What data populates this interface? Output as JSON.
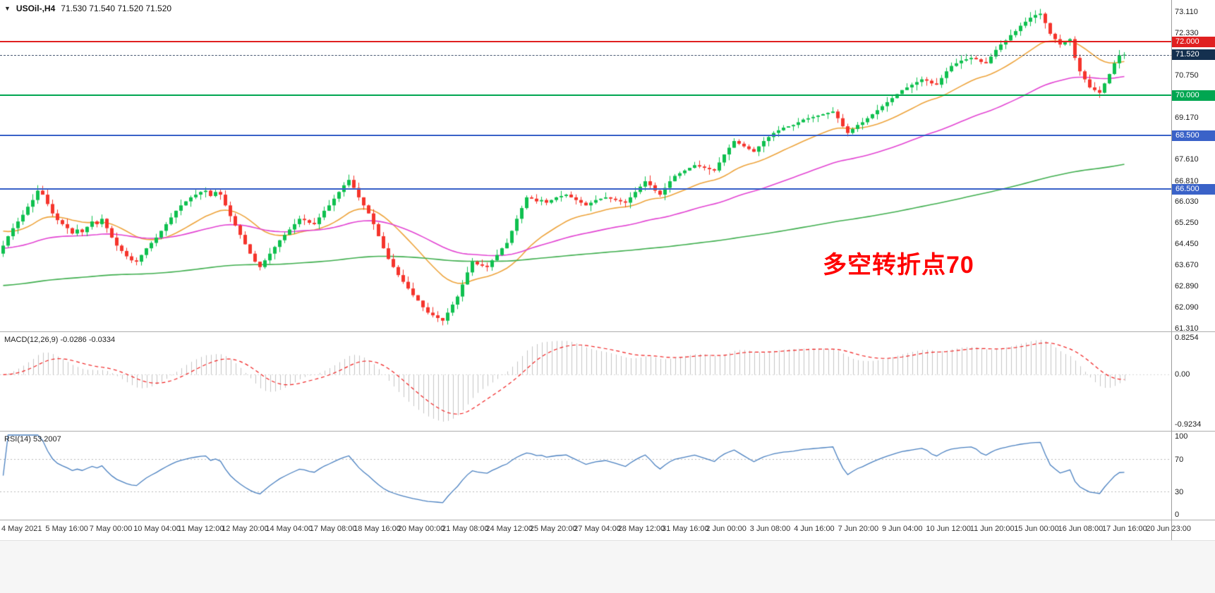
{
  "header": {
    "symbol": "USOil-,H4",
    "ohlc": "71.530 71.540 71.520 71.520"
  },
  "chart_data": [
    {
      "id": "price",
      "type": "candlestick",
      "title": "USOil-,H4",
      "symbol": "USOil",
      "timeframe": "H4",
      "up_color": "#0fc04f",
      "down_color": "#f5342c",
      "ylim": [
        61.2,
        73.56
      ],
      "y_ticks": [
        "73.110",
        "72.330",
        "70.750",
        "69.170",
        "67.610",
        "66.810",
        "66.030",
        "65.250",
        "64.450",
        "63.670",
        "62.890",
        "62.090",
        "61.310"
      ],
      "y_tick_values": [
        73.11,
        72.33,
        70.75,
        69.17,
        67.61,
        66.81,
        66.03,
        65.25,
        64.45,
        63.67,
        62.89,
        62.09,
        61.31
      ],
      "x_labels": [
        "4 May 2021",
        "5 May 16:00",
        "7 May 00:00",
        "10 May 04:00",
        "11 May 12:00",
        "12 May 20:00",
        "14 May 04:00",
        "17 May 08:00",
        "18 May 16:00",
        "20 May 00:00",
        "21 May 08:00",
        "24 May 12:00",
        "25 May 20:00",
        "27 May 04:00",
        "28 May 12:00",
        "31 May 16:00",
        "2 Jun 00:00",
        "3 Jun 08:00",
        "4 Jun 16:00",
        "7 Jun 20:00",
        "9 Jun 04:00",
        "10 Jun 12:00",
        "11 Jun 20:00",
        "15 Jun 00:00",
        "16 Jun 08:00",
        "17 Jun 16:00",
        "20 Jun 23:00"
      ],
      "first_open": 64.1,
      "closes": [
        64.4,
        64.75,
        65.05,
        65.3,
        65.55,
        65.85,
        66.1,
        66.45,
        66.3,
        65.95,
        65.6,
        65.35,
        65.2,
        65.05,
        64.85,
        65.0,
        64.9,
        65.1,
        65.3,
        65.2,
        65.4,
        65.05,
        64.7,
        64.4,
        64.2,
        64.0,
        63.85,
        63.8,
        64.05,
        64.3,
        64.5,
        64.7,
        64.95,
        65.2,
        65.45,
        65.7,
        65.9,
        66.05,
        66.2,
        66.3,
        66.4,
        66.45,
        66.25,
        66.4,
        66.3,
        65.9,
        65.5,
        65.15,
        64.8,
        64.45,
        64.1,
        63.8,
        63.6,
        63.85,
        64.1,
        64.35,
        64.6,
        64.8,
        65.0,
        65.2,
        65.4,
        65.35,
        65.25,
        65.2,
        65.45,
        65.7,
        65.9,
        66.15,
        66.4,
        66.65,
        66.85,
        66.55,
        66.2,
        65.9,
        65.6,
        65.2,
        64.75,
        64.3,
        63.9,
        63.6,
        63.3,
        63.05,
        62.8,
        62.55,
        62.35,
        62.1,
        61.9,
        61.8,
        61.7,
        61.6,
        61.9,
        62.2,
        62.5,
        62.95,
        63.4,
        63.8,
        63.7,
        63.65,
        63.6,
        63.85,
        64.05,
        64.3,
        64.5,
        64.95,
        65.4,
        65.8,
        66.2,
        66.15,
        66.05,
        66.1,
        66.0,
        66.1,
        66.2,
        66.25,
        66.3,
        66.2,
        66.1,
        66.0,
        65.9,
        66.0,
        66.1,
        66.15,
        66.2,
        66.15,
        66.1,
        66.05,
        66.0,
        66.2,
        66.4,
        66.6,
        66.8,
        66.65,
        66.45,
        66.3,
        66.55,
        66.8,
        67.0,
        67.1,
        67.2,
        67.3,
        67.4,
        67.35,
        67.3,
        67.25,
        67.2,
        67.5,
        67.8,
        68.05,
        68.3,
        68.2,
        68.1,
        68.0,
        67.9,
        68.1,
        68.3,
        68.45,
        68.6,
        68.7,
        68.8,
        68.85,
        68.9,
        69.0,
        69.1,
        69.15,
        69.2,
        69.25,
        69.3,
        69.35,
        69.4,
        69.15,
        68.85,
        68.6,
        68.75,
        68.9,
        69.0,
        69.15,
        69.3,
        69.45,
        69.6,
        69.75,
        69.9,
        70.05,
        70.2,
        70.3,
        70.4,
        70.5,
        70.6,
        70.55,
        70.45,
        70.4,
        70.65,
        70.9,
        71.1,
        71.2,
        71.3,
        71.35,
        71.4,
        71.35,
        71.25,
        71.2,
        71.45,
        71.7,
        71.9,
        72.05,
        72.25,
        72.4,
        72.6,
        72.75,
        72.9,
        73.0,
        73.05,
        72.7,
        72.3,
        72.1,
        71.9,
        72.0,
        72.1,
        71.4,
        70.9,
        70.6,
        70.3,
        70.2,
        70.1,
        70.45,
        70.8,
        71.2,
        71.5,
        71.52
      ],
      "horizontal_levels": [
        {
          "price": 72.0,
          "label": "72.000",
          "color": "#e02020"
        },
        {
          "price": 70.0,
          "label": "70.000",
          "color": "#00a651"
        },
        {
          "price": 68.5,
          "label": "68.500",
          "color": "#3a62c8"
        },
        {
          "price": 66.5,
          "label": "66.500",
          "color": "#3a62c8"
        }
      ],
      "current_price": {
        "value": 71.52,
        "label": "71.520",
        "badge_color": "#14304f"
      },
      "moving_averages": [
        {
          "name": "fast-ma",
          "color": "#eda33b",
          "period": 20,
          "start": 65.0
        },
        {
          "name": "mid-ma",
          "color": "#e243d2",
          "period": 60,
          "start": 64.3
        },
        {
          "name": "slow-ma",
          "color": "#3fae4e",
          "period": 250,
          "start": 62.9
        }
      ],
      "annotation": {
        "text": "多空转折点70",
        "color": "#ff0000"
      }
    },
    {
      "id": "macd",
      "type": "bar",
      "label": "MACD(12,26,9)",
      "values_text": "-0.0286 -0.0334",
      "current_main": -0.0286,
      "current_signal": -0.0334,
      "params": {
        "fast": 12,
        "slow": 26,
        "signal": 9
      },
      "y_ticks": [
        "0.8254",
        "0.00",
        "-0.9234"
      ],
      "y_tick_values": [
        0.8254,
        0.0,
        -0.9234
      ],
      "bar_color": "#c4c4c4",
      "signal_color": "#f02020",
      "signal_style": "dashed"
    },
    {
      "id": "rsi",
      "type": "line",
      "label": "RSI(14)",
      "value_text": "53.2007",
      "current_value": 53.2007,
      "period": 14,
      "y_ticks": [
        "100",
        "70",
        "30",
        "0"
      ],
      "y_tick_values": [
        100,
        70,
        30,
        0
      ],
      "levels": [
        70,
        30
      ],
      "line_color": "#4a80c0"
    }
  ]
}
